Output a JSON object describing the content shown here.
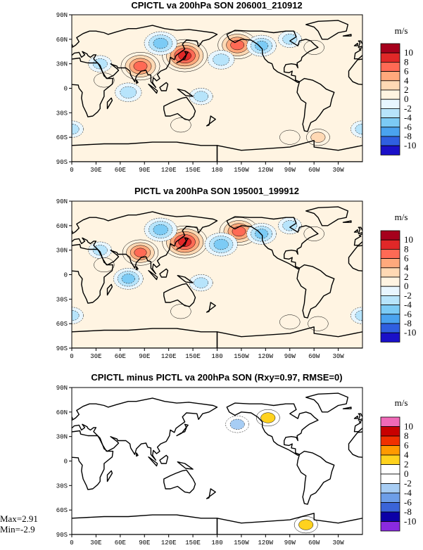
{
  "chart_data": [
    {
      "type": "heatmap",
      "title": "CPICTL va 200hPa SON 206001_210912",
      "units": "m/s",
      "x_ticks": [
        "0",
        "30E",
        "60E",
        "90E",
        "120E",
        "150E",
        "180",
        "150W",
        "120W",
        "90W",
        "60W",
        "30W"
      ],
      "y_ticks": [
        "90N",
        "60N",
        "30N",
        "0",
        "30S",
        "60S",
        "90S"
      ],
      "colorbar": {
        "labels": [
          "10",
          "8",
          "6",
          "4",
          "2",
          "0",
          "-2",
          "-4",
          "-6",
          "-8",
          "-10"
        ],
        "colors": [
          "#a6001c",
          "#e02828",
          "#ff6a55",
          "#ffa97c",
          "#ffd9b4",
          "#fff4e2",
          "#e8f6ff",
          "#b7e4fb",
          "#7ccbf5",
          "#4aa3ef",
          "#2f5fe0",
          "#1a10c8"
        ]
      },
      "anomalies": [
        {
          "lon": 140,
          "lat": 40,
          "value": 10
        },
        {
          "lon": 205,
          "lat": 53,
          "value": 8
        },
        {
          "lon": 85,
          "lat": 27,
          "value": 8
        },
        {
          "lon": 110,
          "lat": 55,
          "value": -6
        },
        {
          "lon": 185,
          "lat": 35,
          "value": -4
        },
        {
          "lon": 235,
          "lat": 52,
          "value": -5
        },
        {
          "lon": 70,
          "lat": -5,
          "value": -4
        },
        {
          "lon": 160,
          "lat": -10,
          "value": -3
        },
        {
          "lon": 35,
          "lat": 30,
          "value": -3
        },
        {
          "lon": 40,
          "lat": 10,
          "value": 2
        },
        {
          "lon": 305,
          "lat": -60,
          "value": 3
        },
        {
          "lon": 270,
          "lat": -60,
          "value": 2
        },
        {
          "lon": 0,
          "lat": -50,
          "value": -3
        },
        {
          "lon": 135,
          "lat": -45,
          "value": 2
        },
        {
          "lon": 270,
          "lat": 60,
          "value": -3
        },
        {
          "lon": 300,
          "lat": 50,
          "value": 2
        }
      ]
    },
    {
      "type": "heatmap",
      "title": "PICTL va 200hPa SON 195001_199912",
      "units": "m/s",
      "x_ticks": [
        "0",
        "30E",
        "60E",
        "90E",
        "120E",
        "150E",
        "180",
        "150W",
        "120W",
        "90W",
        "60W",
        "30W"
      ],
      "y_ticks": [
        "90N",
        "60N",
        "30N",
        "0",
        "30S",
        "60S",
        "90S"
      ],
      "colorbar": {
        "labels": [
          "10",
          "8",
          "6",
          "4",
          "2",
          "0",
          "-2",
          "-4",
          "-6",
          "-8",
          "-10"
        ],
        "colors": [
          "#a6001c",
          "#e02828",
          "#ff6a55",
          "#ffa97c",
          "#ffd9b4",
          "#fff4e2",
          "#e8f6ff",
          "#b7e4fb",
          "#7ccbf5",
          "#4aa3ef",
          "#2f5fe0",
          "#1a10c8"
        ]
      },
      "anomalies": [
        {
          "lon": 140,
          "lat": 40,
          "value": 10
        },
        {
          "lon": 207,
          "lat": 53,
          "value": 8
        },
        {
          "lon": 85,
          "lat": 27,
          "value": 7
        },
        {
          "lon": 110,
          "lat": 55,
          "value": -6
        },
        {
          "lon": 185,
          "lat": 37,
          "value": -6
        },
        {
          "lon": 235,
          "lat": 50,
          "value": -5
        },
        {
          "lon": 70,
          "lat": -5,
          "value": -5
        },
        {
          "lon": 160,
          "lat": -10,
          "value": -3
        },
        {
          "lon": 35,
          "lat": 30,
          "value": -3
        },
        {
          "lon": 40,
          "lat": 12,
          "value": 2
        },
        {
          "lon": 305,
          "lat": -60,
          "value": 2
        },
        {
          "lon": 270,
          "lat": -58,
          "value": 2
        },
        {
          "lon": 0,
          "lat": -50,
          "value": -3
        },
        {
          "lon": 135,
          "lat": -45,
          "value": 2
        },
        {
          "lon": 270,
          "lat": 60,
          "value": -3
        },
        {
          "lon": 300,
          "lat": 50,
          "value": 2
        }
      ]
    },
    {
      "type": "heatmap",
      "title": "CPICTL minus PICTL va 200hPa SON (Rxy=0.97, RMSE=0)",
      "units": "m/s",
      "x_ticks": [
        "0",
        "30E",
        "60E",
        "90E",
        "120E",
        "150E",
        "180",
        "150W",
        "120W",
        "90W",
        "60W",
        "30W"
      ],
      "y_ticks": [
        "90N",
        "60N",
        "30N",
        "0",
        "30S",
        "60S",
        "90S"
      ],
      "colorbar": {
        "labels": [
          "10",
          "8",
          "6",
          "4",
          "2",
          "0",
          "-2",
          "-4",
          "-6",
          "-8",
          "-10"
        ],
        "colors": [
          "#f06ab8",
          "#c80000",
          "#f03000",
          "#ff9a00",
          "#ffd21e",
          "#ffffff",
          "#ffffff",
          "#a7cdf4",
          "#6d9ee8",
          "#3a64d8",
          "#0c00a6",
          "#8a2ae0"
        ]
      },
      "anomalies": [
        {
          "lon": 205,
          "lat": 45,
          "value": -3
        },
        {
          "lon": 243,
          "lat": 53,
          "value": 3
        },
        {
          "lon": 290,
          "lat": -78,
          "value": 3
        }
      ],
      "max_label": "Max=2.91",
      "min_label": "Min=-2.9"
    }
  ]
}
